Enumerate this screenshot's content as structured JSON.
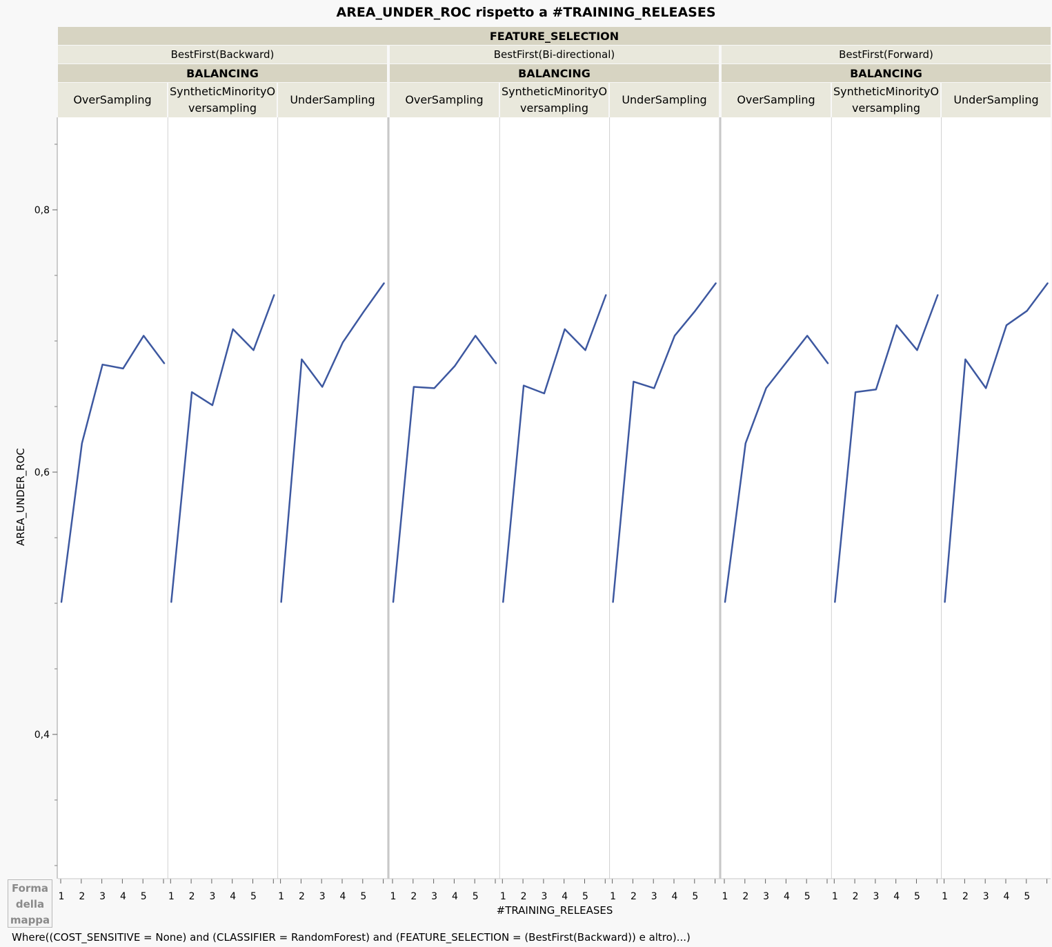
{
  "chart_data": {
    "type": "line",
    "title": "AREA_UNDER_ROC rispetto a #TRAINING_RELEASES",
    "xlabel": "#TRAINING_RELEASES",
    "ylabel": "AREA_UNDER_ROC",
    "outer_group_title": "FEATURE_SELECTION",
    "inner_group_title": "BALANCING",
    "y_ticks": [
      "0,4",
      "0,6",
      "0,8"
    ],
    "y_tick_values": [
      0.4,
      0.6,
      0.8
    ],
    "ylim": [
      0.3,
      0.87
    ],
    "x_ticks": [
      "1",
      "2",
      "3",
      "4",
      "5"
    ],
    "x": [
      1,
      2,
      3,
      4,
      5,
      6
    ],
    "line_color": "#3d58a0",
    "groups": [
      {
        "name": "BestFirst(Backward)",
        "panels": [
          {
            "name": "OverSampling",
            "values": [
              0.501,
              0.622,
              0.682,
              0.679,
              0.704,
              0.683
            ]
          },
          {
            "name": "SyntheticMinorityOversampling",
            "values": [
              0.501,
              0.661,
              0.651,
              0.709,
              0.693,
              0.735
            ]
          },
          {
            "name": "UnderSampling",
            "values": [
              0.501,
              0.686,
              0.665,
              0.699,
              0.722,
              0.744
            ]
          }
        ]
      },
      {
        "name": "BestFirst(Bi-directional)",
        "panels": [
          {
            "name": "OverSampling",
            "values": [
              0.501,
              0.665,
              0.664,
              0.681,
              0.704,
              0.683
            ]
          },
          {
            "name": "SyntheticMinorityOversampling",
            "values": [
              0.501,
              0.666,
              0.66,
              0.709,
              0.693,
              0.735
            ]
          },
          {
            "name": "UnderSampling",
            "values": [
              0.501,
              0.669,
              0.664,
              0.704,
              0.723,
              0.744
            ]
          }
        ]
      },
      {
        "name": "BestFirst(Forward)",
        "panels": [
          {
            "name": "OverSampling",
            "values": [
              0.501,
              0.622,
              0.664,
              0.684,
              0.704,
              0.683
            ]
          },
          {
            "name": "SyntheticMinorityOversampling",
            "values": [
              0.501,
              0.661,
              0.663,
              0.712,
              0.693,
              0.735
            ]
          },
          {
            "name": "UnderSampling",
            "values": [
              0.501,
              0.686,
              0.664,
              0.712,
              0.723,
              0.744
            ]
          }
        ]
      }
    ]
  },
  "panel_labels": {
    "over": "OverSampling",
    "smote_line1": "SyntheticMinorityO",
    "smote_line2": "versampling",
    "under": "UnderSampling"
  },
  "legend_box": {
    "line1": "Forma",
    "line2": "della",
    "line3": "mappa"
  },
  "where_clause": "Where((COST_SENSITIVE = None) and (CLASSIFIER = RandomForest) and (FEATURE_SELECTION = (BestFirst(Backward)) e altro)...)"
}
